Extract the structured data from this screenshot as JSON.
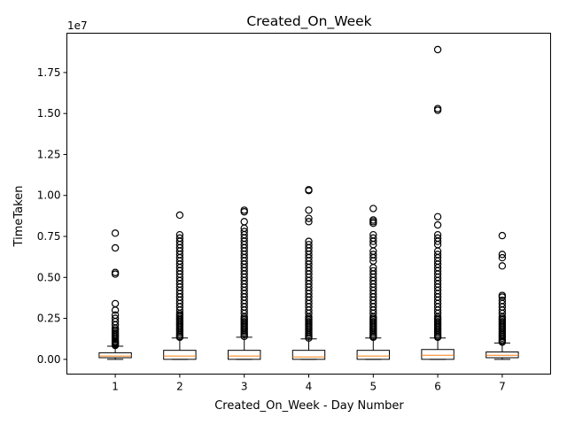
{
  "chart_data": {
    "type": "boxplot",
    "title": "Created_On_Week",
    "xlabel": "Created_On_Week - Day Number",
    "ylabel": "TimeTaken",
    "y_offset_label": "1e7",
    "y_scale_factor": 10000000,
    "ylim": [
      -0.09,
      1.99
    ],
    "yticks": [
      0.0,
      0.25,
      0.5,
      0.75,
      1.0,
      1.25,
      1.5,
      1.75
    ],
    "ytick_labels": [
      "0.00",
      "0.25",
      "0.50",
      "0.75",
      "1.00",
      "1.25",
      "1.50",
      "1.75"
    ],
    "categories": [
      "1",
      "2",
      "3",
      "4",
      "5",
      "6",
      "7"
    ],
    "boxes": [
      {
        "category": "1",
        "whisker_low": 0.0,
        "q1": 0.01,
        "median": 0.02,
        "q3": 0.04,
        "whisker_high": 0.08,
        "fliers": [
          0.085,
          0.09,
          0.095,
          0.1,
          0.105,
          0.11,
          0.12,
          0.13,
          0.14,
          0.15,
          0.16,
          0.17,
          0.18,
          0.19,
          0.21,
          0.23,
          0.25,
          0.27,
          0.3,
          0.34,
          0.52,
          0.53,
          0.68,
          0.77
        ]
      },
      {
        "category": "2",
        "whisker_low": 0.0,
        "q1": 0.0,
        "median": 0.02,
        "q3": 0.055,
        "whisker_high": 0.13,
        "fliers": [
          0.135,
          0.14,
          0.15,
          0.16,
          0.17,
          0.18,
          0.19,
          0.2,
          0.21,
          0.22,
          0.23,
          0.24,
          0.25,
          0.26,
          0.27,
          0.28,
          0.3,
          0.32,
          0.34,
          0.36,
          0.38,
          0.4,
          0.42,
          0.44,
          0.46,
          0.48,
          0.5,
          0.52,
          0.54,
          0.56,
          0.58,
          0.6,
          0.62,
          0.64,
          0.66,
          0.68,
          0.7,
          0.72,
          0.74,
          0.76,
          0.88
        ]
      },
      {
        "category": "3",
        "whisker_low": 0.0,
        "q1": 0.0,
        "median": 0.02,
        "q3": 0.055,
        "whisker_high": 0.135,
        "fliers": [
          0.14,
          0.15,
          0.16,
          0.17,
          0.18,
          0.19,
          0.2,
          0.21,
          0.22,
          0.23,
          0.24,
          0.25,
          0.26,
          0.28,
          0.3,
          0.32,
          0.34,
          0.36,
          0.38,
          0.4,
          0.42,
          0.44,
          0.46,
          0.48,
          0.5,
          0.52,
          0.54,
          0.56,
          0.58,
          0.6,
          0.62,
          0.64,
          0.66,
          0.68,
          0.7,
          0.72,
          0.74,
          0.76,
          0.78,
          0.8,
          0.84,
          0.9,
          0.91
        ]
      },
      {
        "category": "4",
        "whisker_low": 0.0,
        "q1": 0.0,
        "median": 0.015,
        "q3": 0.055,
        "whisker_high": 0.125,
        "fliers": [
          0.13,
          0.14,
          0.15,
          0.16,
          0.17,
          0.18,
          0.19,
          0.2,
          0.21,
          0.22,
          0.23,
          0.24,
          0.25,
          0.26,
          0.28,
          0.3,
          0.32,
          0.34,
          0.36,
          0.38,
          0.4,
          0.42,
          0.44,
          0.46,
          0.48,
          0.5,
          0.52,
          0.54,
          0.56,
          0.58,
          0.6,
          0.62,
          0.64,
          0.66,
          0.68,
          0.7,
          0.72,
          0.84,
          0.86,
          0.91,
          1.03,
          1.035
        ]
      },
      {
        "category": "5",
        "whisker_low": 0.0,
        "q1": 0.0,
        "median": 0.02,
        "q3": 0.055,
        "whisker_high": 0.13,
        "fliers": [
          0.135,
          0.14,
          0.15,
          0.16,
          0.17,
          0.18,
          0.19,
          0.2,
          0.21,
          0.22,
          0.23,
          0.24,
          0.25,
          0.26,
          0.28,
          0.3,
          0.32,
          0.34,
          0.36,
          0.38,
          0.4,
          0.42,
          0.44,
          0.46,
          0.48,
          0.5,
          0.52,
          0.54,
          0.56,
          0.6,
          0.62,
          0.64,
          0.66,
          0.7,
          0.72,
          0.74,
          0.76,
          0.83,
          0.84,
          0.85,
          0.92
        ]
      },
      {
        "category": "6",
        "whisker_low": 0.0,
        "q1": 0.0,
        "median": 0.025,
        "q3": 0.06,
        "whisker_high": 0.13,
        "fliers": [
          0.135,
          0.14,
          0.15,
          0.16,
          0.17,
          0.18,
          0.19,
          0.2,
          0.21,
          0.22,
          0.23,
          0.24,
          0.25,
          0.26,
          0.28,
          0.3,
          0.32,
          0.34,
          0.36,
          0.38,
          0.4,
          0.42,
          0.44,
          0.46,
          0.48,
          0.5,
          0.52,
          0.54,
          0.56,
          0.58,
          0.6,
          0.62,
          0.64,
          0.66,
          0.7,
          0.72,
          0.74,
          0.76,
          0.82,
          0.87,
          1.52,
          1.53,
          1.89
        ]
      },
      {
        "category": "7",
        "whisker_low": 0.0,
        "q1": 0.01,
        "median": 0.025,
        "q3": 0.045,
        "whisker_high": 0.1,
        "fliers": [
          0.105,
          0.11,
          0.12,
          0.13,
          0.14,
          0.15,
          0.16,
          0.17,
          0.18,
          0.19,
          0.2,
          0.21,
          0.22,
          0.23,
          0.24,
          0.25,
          0.26,
          0.28,
          0.3,
          0.32,
          0.34,
          0.36,
          0.38,
          0.39,
          0.57,
          0.62,
          0.64,
          0.755
        ]
      }
    ],
    "colors": {
      "box": "#000000",
      "median": "#ff7f0e",
      "flier": "#000000",
      "background": "#ffffff"
    },
    "grid": false,
    "legend": "none"
  }
}
